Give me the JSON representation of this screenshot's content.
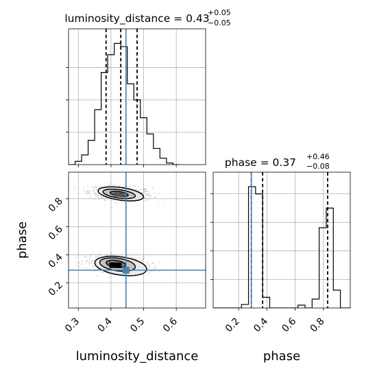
{
  "chart_data": [
    {
      "type": "histogram",
      "panel": "top-left",
      "title_main": "luminosity_distance = 0.43",
      "title_sup": "+0.05",
      "title_sub": "−0.05",
      "xlim": [
        0.27,
        0.69
      ],
      "grid": true,
      "bins": [
        {
          "x0": 0.27,
          "x1": 0.29,
          "v": 0.0
        },
        {
          "x0": 0.29,
          "x1": 0.31,
          "v": 1.0
        },
        {
          "x0": 0.31,
          "x1": 0.33,
          "v": 3.0
        },
        {
          "x0": 0.33,
          "x1": 0.35,
          "v": 7.5
        },
        {
          "x0": 0.35,
          "x1": 0.37,
          "v": 17.0
        },
        {
          "x0": 0.37,
          "x1": 0.39,
          "v": 28.5
        },
        {
          "x0": 0.39,
          "x1": 0.41,
          "v": 34.0
        },
        {
          "x0": 0.41,
          "x1": 0.43,
          "v": 37.5
        },
        {
          "x0": 0.43,
          "x1": 0.45,
          "v": 36.5
        },
        {
          "x0": 0.45,
          "x1": 0.47,
          "v": 25.0
        },
        {
          "x0": 0.47,
          "x1": 0.49,
          "v": 20.0
        },
        {
          "x0": 0.49,
          "x1": 0.51,
          "v": 14.5
        },
        {
          "x0": 0.51,
          "x1": 0.53,
          "v": 9.5
        },
        {
          "x0": 0.53,
          "x1": 0.55,
          "v": 5.0
        },
        {
          "x0": 0.55,
          "x1": 0.57,
          "v": 2.0
        },
        {
          "x0": 0.57,
          "x1": 0.59,
          "v": 0.5
        },
        {
          "x0": 0.59,
          "x1": 0.61,
          "v": 0.0
        }
      ],
      "quantiles": [
        0.385,
        0.43,
        0.48
      ],
      "truth": 0.446
    },
    {
      "type": "scatter",
      "panel": "bottom-left",
      "xlabel": "luminosity_distance",
      "ylabel": "phase",
      "xlim": [
        0.27,
        0.69
      ],
      "ylim": [
        0.02,
        0.99
      ],
      "xticks": [
        "0.3",
        "0.4",
        "0.5",
        "0.6"
      ],
      "yticks": [
        "0.2",
        "0.4",
        "0.6",
        "0.8"
      ],
      "grid": true,
      "clusters": [
        {
          "cx": 0.43,
          "cy": 0.84,
          "sx": 0.065,
          "sy": 0.035
        },
        {
          "cx": 0.42,
          "cy": 0.33,
          "sx": 0.065,
          "sy": 0.04
        }
      ],
      "contours": [
        {
          "cx": 0.43,
          "cy": 0.835,
          "rx": 0.07,
          "ry": 0.045
        },
        {
          "cx": 0.425,
          "cy": 0.835,
          "rx": 0.05,
          "ry": 0.03
        },
        {
          "cx": 0.425,
          "cy": 0.835,
          "rx": 0.028,
          "ry": 0.016
        },
        {
          "cx": 0.43,
          "cy": 0.32,
          "rx": 0.08,
          "ry": 0.065
        },
        {
          "cx": 0.42,
          "cy": 0.33,
          "rx": 0.055,
          "ry": 0.045
        },
        {
          "cx": 0.415,
          "cy": 0.335,
          "rx": 0.03,
          "ry": 0.025
        }
      ],
      "truth": {
        "x": 0.446,
        "y": 0.29
      }
    },
    {
      "type": "histogram",
      "panel": "bottom-right",
      "title_main": "phase = 0.37",
      "title_sup": "+0.46",
      "title_sub": "−0.08",
      "xlabel": "phase",
      "xlim": [
        0.02,
        0.99
      ],
      "xticks": [
        "0.2",
        "0.4",
        "0.6",
        "0.8"
      ],
      "grid": true,
      "bins": [
        {
          "x0": 0.0,
          "x1": 0.22,
          "v": 0.0
        },
        {
          "x0": 0.22,
          "x1": 0.27,
          "v": 1.0
        },
        {
          "x0": 0.27,
          "x1": 0.32,
          "v": 34.0
        },
        {
          "x0": 0.32,
          "x1": 0.37,
          "v": 32.0
        },
        {
          "x0": 0.37,
          "x1": 0.42,
          "v": 3.0
        },
        {
          "x0": 0.42,
          "x1": 0.47,
          "v": 0.0
        },
        {
          "x0": 0.47,
          "x1": 0.62,
          "v": 0.0
        },
        {
          "x0": 0.62,
          "x1": 0.67,
          "v": 0.8
        },
        {
          "x0": 0.67,
          "x1": 0.72,
          "v": 0.0
        },
        {
          "x0": 0.72,
          "x1": 0.77,
          "v": 2.5
        },
        {
          "x0": 0.77,
          "x1": 0.82,
          "v": 22.5
        },
        {
          "x0": 0.82,
          "x1": 0.87,
          "v": 28.0
        },
        {
          "x0": 0.87,
          "x1": 0.92,
          "v": 5.0
        },
        {
          "x0": 0.92,
          "x1": 1.0,
          "v": 0.0
        }
      ],
      "quantiles": [
        0.29,
        0.37,
        0.83
      ],
      "truth": 0.29
    }
  ]
}
